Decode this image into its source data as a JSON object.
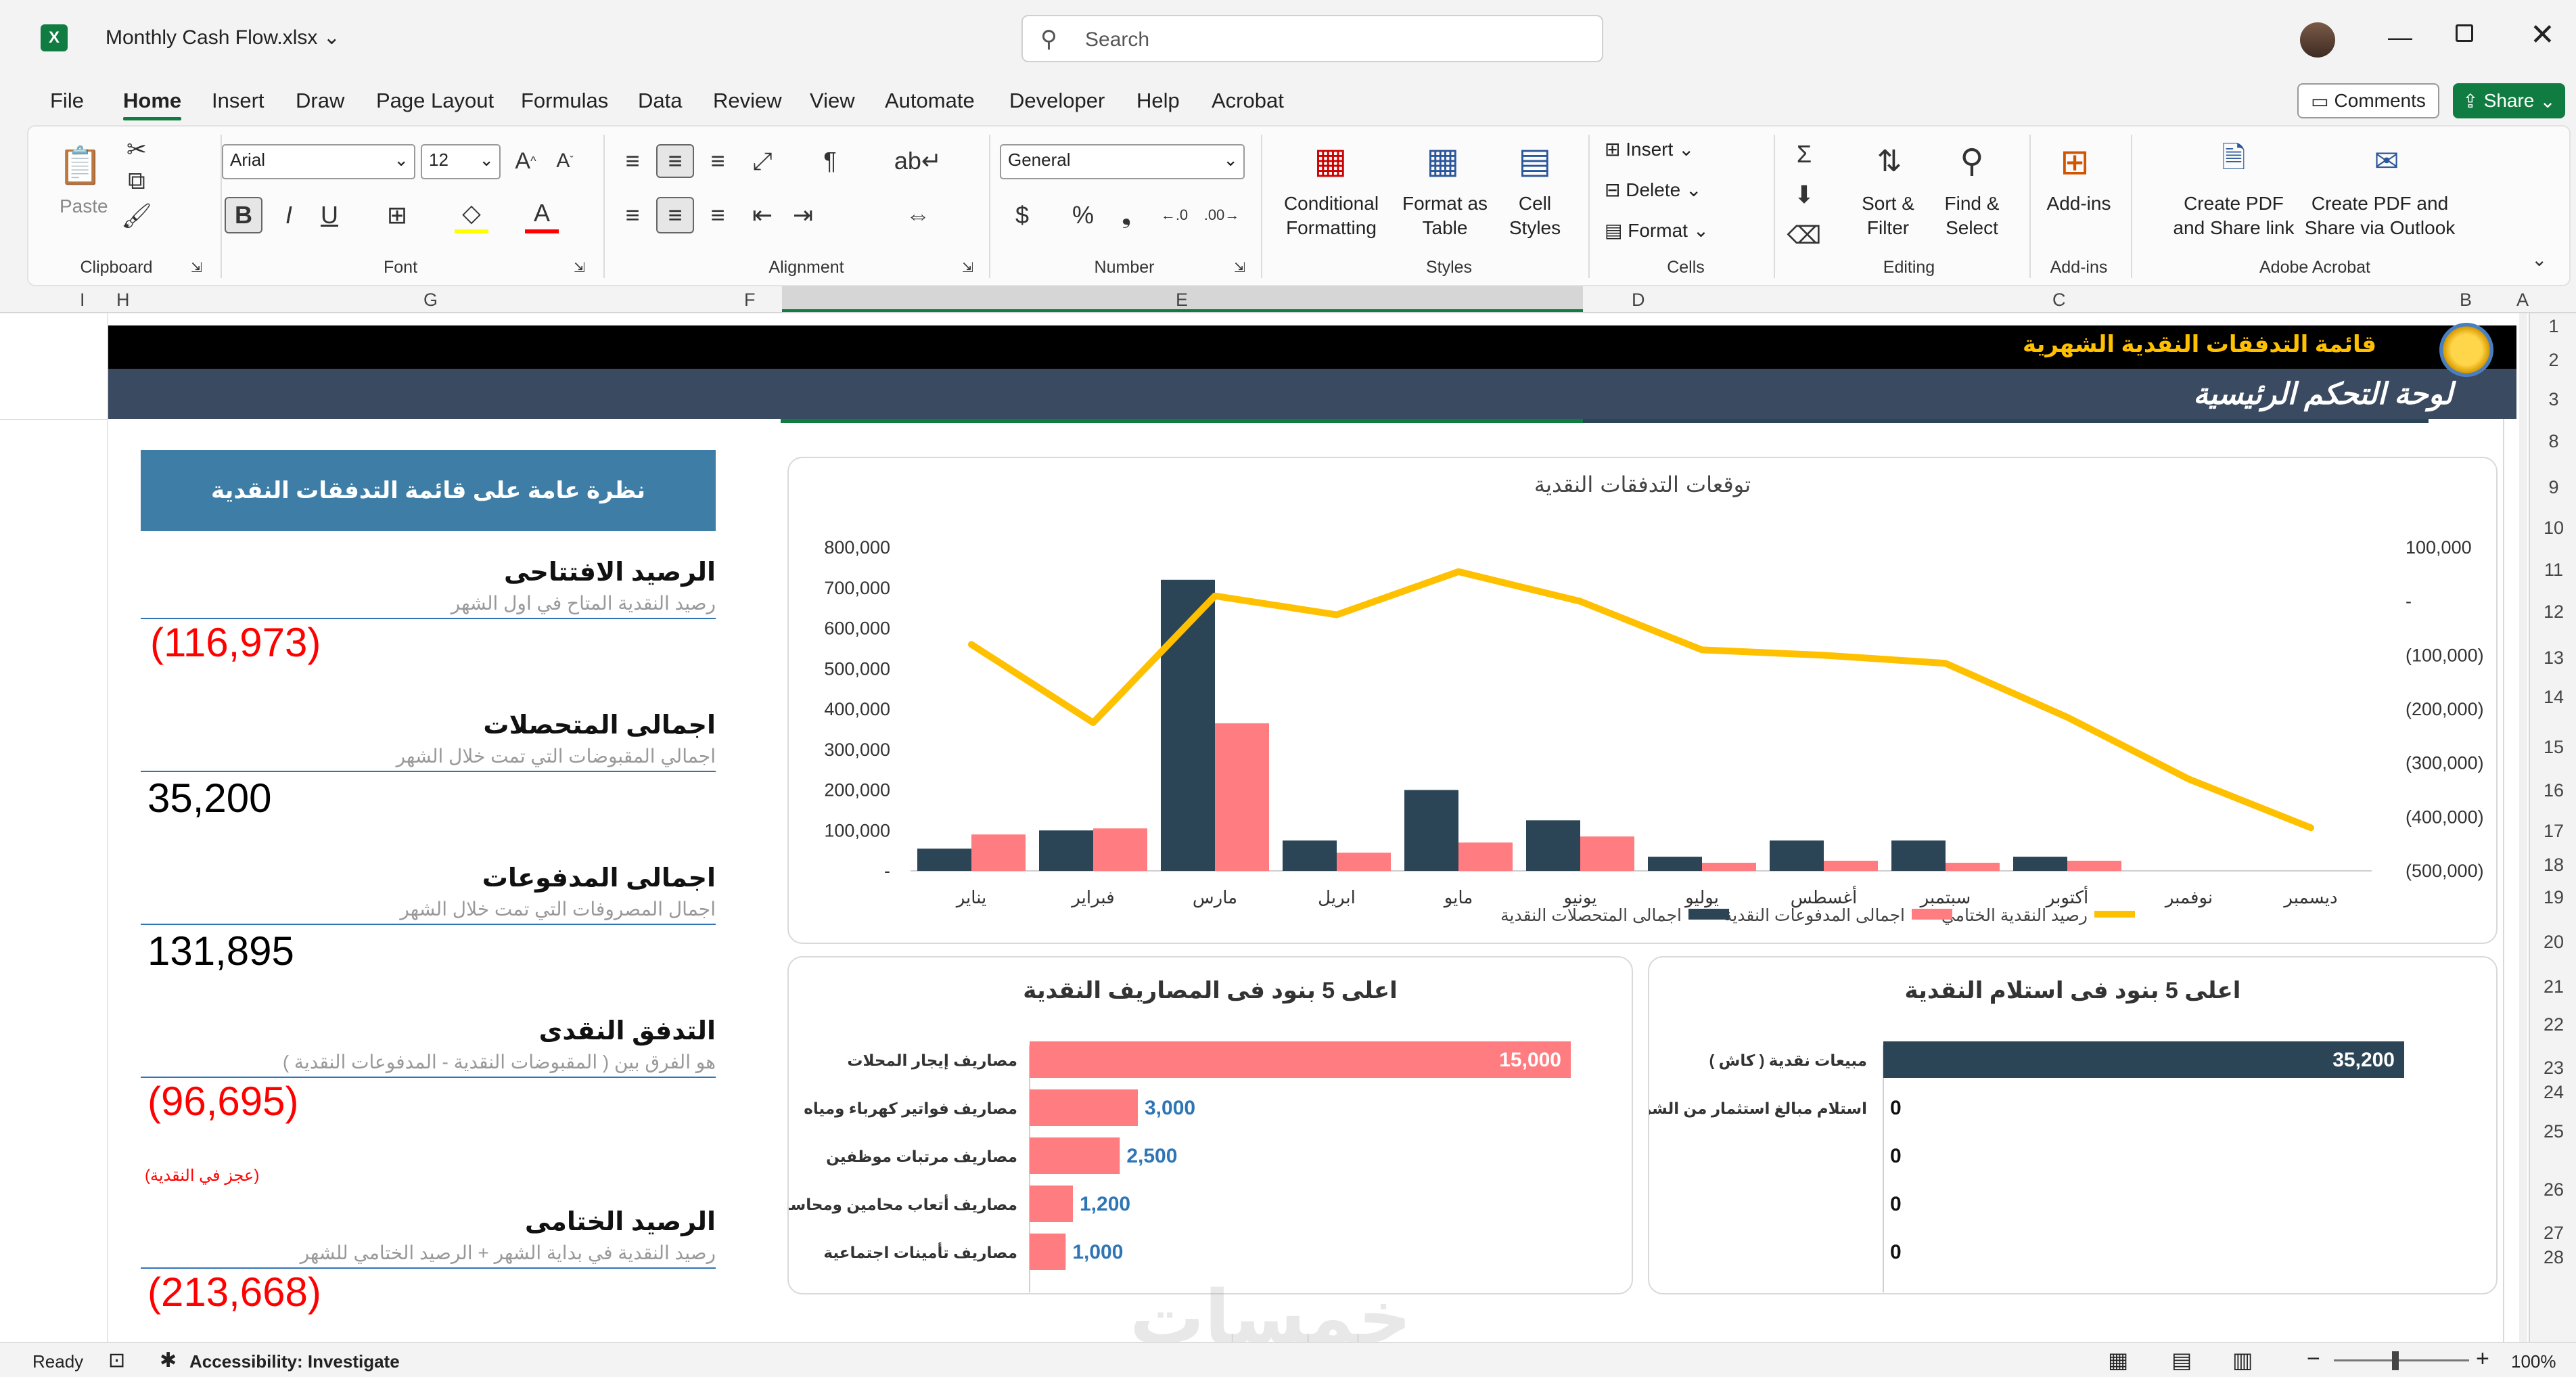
{
  "window": {
    "file_name": "Monthly Cash Flow.xlsx",
    "search_placeholder": "Search"
  },
  "menu": [
    "File",
    "Home",
    "Insert",
    "Draw",
    "Page Layout",
    "Formulas",
    "Data",
    "Review",
    "View",
    "Automate",
    "Developer",
    "Help",
    "Acrobat"
  ],
  "menu_active": "Home",
  "buttons": {
    "comments": "Comments",
    "share": "Share"
  },
  "ribbon": {
    "clipboard": {
      "paste": "Paste",
      "label": "Clipboard"
    },
    "font": {
      "name": "Arial",
      "size": "12",
      "label": "Font"
    },
    "alignment": {
      "label": "Alignment"
    },
    "number": {
      "format": "General",
      "label": "Number"
    },
    "styles": {
      "conditional": "Conditional\nFormatting",
      "format_table": "Format as\nTable",
      "cell_styles": "Cell\nStyles",
      "label": "Styles"
    },
    "cells": {
      "insert": "Insert",
      "delete": "Delete",
      "format": "Format",
      "label": "Cells"
    },
    "editing": {
      "sort": "Sort &\nFilter",
      "find": "Find &\nSelect",
      "label": "Editing"
    },
    "addins": {
      "addins": "Add-ins",
      "label": "Add-ins"
    },
    "acrobat": {
      "create_pdf": "Create PDF\nand Share link",
      "create_outlook": "Create PDF and\nShare via Outlook",
      "label": "Adobe Acrobat"
    }
  },
  "columns": [
    "I",
    "H",
    "G",
    "F",
    "E",
    "D",
    "C",
    "B",
    "A"
  ],
  "rows": [
    "1",
    "2",
    "3",
    "8",
    "9",
    "10",
    "11",
    "12",
    "13",
    "14",
    "15",
    "16",
    "17",
    "18",
    "19",
    "20",
    "21",
    "22",
    "23",
    "24",
    "25",
    "26",
    "27",
    "28"
  ],
  "dashboard": {
    "header_title": "قائمة التدفقات النقدية الشهرية",
    "header_subtitle": "لوحة التحكم الرئيسية",
    "overview_title": "نظرة عامة على قائمة التدفقات النقدية",
    "kpis": [
      {
        "title": "الرصيد الافتتاحى",
        "sub": "رصيد النقدية المتاح في اول الشهر",
        "value": "(116,973)",
        "negative": true
      },
      {
        "title": "اجمالى المتحصلات",
        "sub": "اجمالي المقبوضات التي تمت خلال الشهر",
        "value": "35,200",
        "negative": false
      },
      {
        "title": "اجمالى المدفوعات",
        "sub": "اجمال المصروفات التي تمت خلال الشهر",
        "value": "131,895",
        "negative": false
      },
      {
        "title": "التدفق النقدى",
        "sub": "هو الفرق بين ( المقبوضات النقدية - المدفوعات النقدية )",
        "value": "(96,695)",
        "negative": true,
        "note": "(عجز في النقدية)"
      },
      {
        "title": "الرصيد الختامى",
        "sub": "رصيد النقدية في بداية الشهر + الرصيد الختامي للشهر",
        "value": "(213,668)",
        "negative": true
      }
    ],
    "watermark": "خمسات"
  },
  "chart_data": [
    {
      "type": "bar",
      "title": "توقعات التدفقات النقدية",
      "categories": [
        "يناير",
        "فبراير",
        "مارس",
        "ابريل",
        "مايو",
        "يونيو",
        "يوليو",
        "أغسطس",
        "سبتمبر",
        "أكتوبر",
        "نوفمبر",
        "ديسمبر"
      ],
      "series": [
        {
          "name": "اجمالى المتحصلات النقدية",
          "values": [
            55000,
            100000,
            720000,
            75000,
            200000,
            125000,
            35000,
            75000,
            75000,
            35000,
            0,
            0
          ],
          "color": "#2b4556",
          "kind": "bar"
        },
        {
          "name": "اجمالى المدفوعات النقدية",
          "values": [
            90000,
            105000,
            365000,
            45000,
            70000,
            85000,
            20000,
            25000,
            20000,
            25000,
            0,
            0
          ],
          "color": "#ff7c80",
          "kind": "bar"
        },
        {
          "name": "رصيد النقدية الختامي",
          "values": [
            -80000,
            -225000,
            10000,
            -25000,
            55000,
            0,
            -90000,
            -100000,
            -115000,
            -215000,
            -330000,
            -420000
          ],
          "color": "#ffc000",
          "kind": "line",
          "axis": "right"
        }
      ],
      "ylim": [
        0,
        800000
      ],
      "yticks": [
        "800,000",
        "700,000",
        "600,000",
        "500,000",
        "400,000",
        "300,000",
        "200,000",
        "100,000",
        "-"
      ],
      "y2lim": [
        -500000,
        100000
      ],
      "y2ticks": [
        "100,000",
        "-",
        "(100,000)",
        "(200,000)",
        "(300,000)",
        "(400,000)",
        "(500,000)"
      ],
      "legend_position": "bottom"
    },
    {
      "type": "bar",
      "orientation": "horizontal",
      "title": "اعلى 5 بنود فى المصاريف النقدية",
      "categories": [
        "مصاريف إيجار المحلات",
        "مصاريف فواتير كهرباء ومياه",
        "مصاريف مرتبات موظفين",
        "مصاريف أتعاب محامين ومحاسبين",
        "مصاريف تأمينات اجتماعية"
      ],
      "values": [
        15000,
        3000,
        2500,
        1200,
        1000
      ],
      "labels": [
        "15,000",
        "3,000",
        "2,500",
        "1,200",
        "1,000"
      ],
      "color": "#ff7c80"
    },
    {
      "type": "bar",
      "orientation": "horizontal",
      "title": "اعلى 5 بنود فى استلام  النقدية",
      "categories": [
        "مبيعات نقدية ( كاش )",
        "استلام مبالغ استثمار من الشركاء",
        "",
        "",
        ""
      ],
      "values": [
        35200,
        0,
        0,
        0,
        0
      ],
      "labels": [
        "35,200",
        "0",
        "0",
        "0",
        "0"
      ],
      "color": "#2b4556"
    }
  ],
  "status": {
    "ready": "Ready",
    "accessibility": "Accessibility: Investigate",
    "zoom": "100%"
  }
}
